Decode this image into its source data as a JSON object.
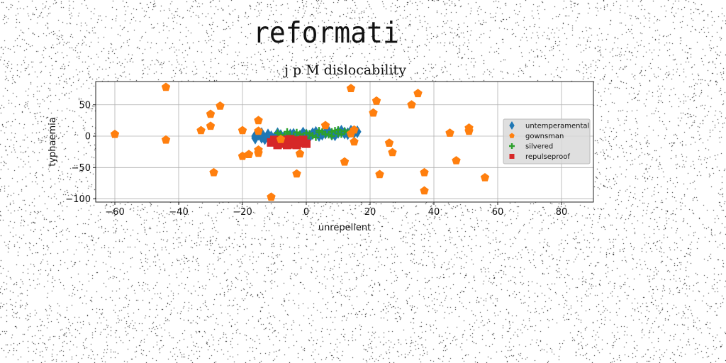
{
  "page": {
    "title": "reformati"
  },
  "colors": {
    "blue": "#1f77b4",
    "orange": "#ff7f0e",
    "green": "#2ca02c",
    "red": "#d62728",
    "grid": "#b0b0b0"
  },
  "chart_data": {
    "type": "scatter",
    "title": "j p M dislocability",
    "xlabel": "unrepellent",
    "ylabel": "typhaemia",
    "xlim": [
      -66,
      90
    ],
    "ylim": [
      -105,
      87
    ],
    "xticks": [
      -60,
      -40,
      -20,
      0,
      20,
      40,
      60,
      80
    ],
    "yticks": [
      50,
      0,
      -50,
      -100
    ],
    "xtick_labels": [
      "−60",
      "−40",
      "−20",
      "0",
      "20",
      "40",
      "60",
      "80"
    ],
    "ytick_labels": [
      "50",
      "0",
      "−50",
      "−100"
    ],
    "grid": true,
    "legend_position": "right",
    "series": [
      {
        "name": "untemperamental",
        "marker": "diamond",
        "color": "#1f77b4",
        "points": [
          [
            -16,
            0
          ],
          [
            -14,
            -2
          ],
          [
            -12,
            2
          ],
          [
            -10,
            -3
          ],
          [
            -8,
            1
          ],
          [
            -6,
            -1
          ],
          [
            -4,
            3
          ],
          [
            -2,
            0
          ],
          [
            0,
            2
          ],
          [
            2,
            4
          ],
          [
            4,
            1
          ],
          [
            6,
            5
          ],
          [
            8,
            3
          ],
          [
            10,
            6
          ],
          [
            12,
            5
          ],
          [
            14,
            8
          ],
          [
            15,
            6
          ],
          [
            -15,
            3
          ],
          [
            -13,
            -4
          ],
          [
            -11,
            -1
          ],
          [
            -9,
            4
          ],
          [
            -7,
            -2
          ],
          [
            -5,
            2
          ],
          [
            -3,
            -3
          ],
          [
            -1,
            5
          ],
          [
            1,
            -1
          ],
          [
            3,
            6
          ],
          [
            5,
            3
          ],
          [
            7,
            7
          ],
          [
            9,
            2
          ],
          [
            11,
            8
          ],
          [
            13,
            4
          ],
          [
            -16,
            -3
          ],
          [
            -14,
            4
          ],
          [
            16,
            7
          ]
        ]
      },
      {
        "name": "gownsman",
        "marker": "pentagon",
        "color": "#ff7f0e",
        "points": [
          [
            -44,
            78
          ],
          [
            -60,
            3
          ],
          [
            -44,
            -6
          ],
          [
            -30,
            35
          ],
          [
            -30,
            16
          ],
          [
            -27,
            48
          ],
          [
            -33,
            9
          ],
          [
            -29,
            -58
          ],
          [
            -20,
            9
          ],
          [
            -20,
            -32
          ],
          [
            -18,
            -29
          ],
          [
            -15,
            -22
          ],
          [
            -15,
            -27
          ],
          [
            -15,
            25
          ],
          [
            -15,
            8
          ],
          [
            -11,
            -97
          ],
          [
            -8,
            -5
          ],
          [
            -3,
            -60
          ],
          [
            -2,
            -28
          ],
          [
            6,
            17
          ],
          [
            12,
            -41
          ],
          [
            14,
            76
          ],
          [
            14,
            4
          ],
          [
            15,
            10
          ],
          [
            15,
            -9
          ],
          [
            21,
            37
          ],
          [
            22,
            56
          ],
          [
            23,
            -61
          ],
          [
            26,
            -11
          ],
          [
            27,
            -26
          ],
          [
            33,
            50
          ],
          [
            35,
            68
          ],
          [
            37,
            -58
          ],
          [
            37,
            -87
          ],
          [
            45,
            5
          ],
          [
            47,
            -39
          ],
          [
            51,
            8
          ],
          [
            51,
            13
          ],
          [
            56,
            -66
          ]
        ]
      },
      {
        "name": "silvered",
        "marker": "plus",
        "color": "#2ca02c",
        "points": [
          [
            -8,
            2
          ],
          [
            -6,
            4
          ],
          [
            -4,
            0
          ],
          [
            -2,
            3
          ],
          [
            0,
            5
          ],
          [
            2,
            1
          ],
          [
            4,
            6
          ],
          [
            6,
            3
          ],
          [
            8,
            7
          ],
          [
            10,
            4
          ],
          [
            12,
            8
          ],
          [
            -7,
            -2
          ],
          [
            -5,
            1
          ],
          [
            -3,
            6
          ],
          [
            -1,
            -1
          ],
          [
            1,
            4
          ],
          [
            3,
            -2
          ],
          [
            5,
            7
          ],
          [
            7,
            2
          ],
          [
            9,
            9
          ],
          [
            11,
            3
          ],
          [
            13,
            6
          ],
          [
            -6,
            7
          ],
          [
            0,
            -3
          ],
          [
            4,
            9
          ],
          [
            8,
            0
          ],
          [
            -9,
            5
          ],
          [
            10,
            10
          ]
        ]
      },
      {
        "name": "repulseproof",
        "marker": "square",
        "color": "#d62728",
        "points": [
          [
            -11,
            -10
          ],
          [
            -9,
            -14
          ],
          [
            -8,
            -8
          ],
          [
            -7,
            -12
          ],
          [
            -6,
            -6
          ],
          [
            -5,
            -10
          ],
          [
            -4,
            -13
          ],
          [
            -3,
            -7
          ],
          [
            -2,
            -11
          ],
          [
            -1,
            -9
          ],
          [
            0,
            -12
          ],
          [
            -10,
            -6
          ],
          [
            -6,
            -14
          ],
          [
            -3,
            -14
          ],
          [
            -8,
            -11
          ],
          [
            -5,
            -5
          ],
          [
            -1,
            -6
          ]
        ]
      }
    ]
  }
}
